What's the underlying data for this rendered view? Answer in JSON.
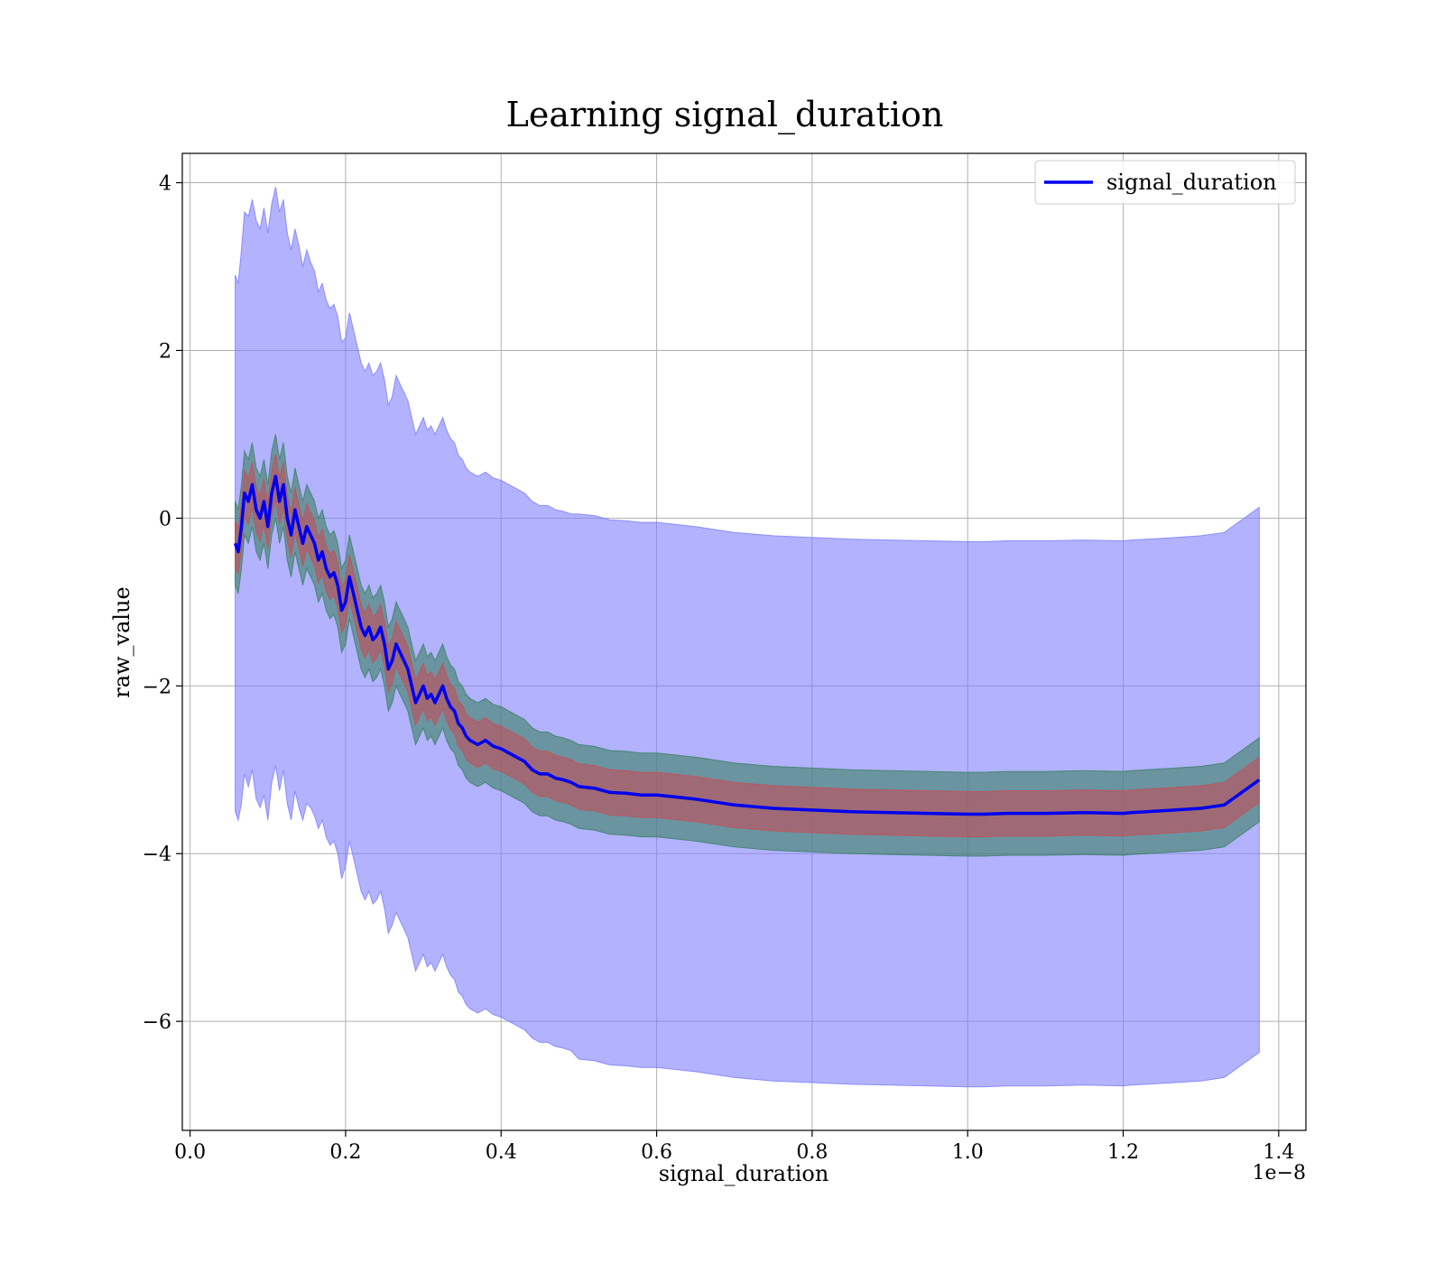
{
  "chart_data": {
    "type": "line",
    "title": "Learning signal_duration",
    "xlabel": "signal_duration",
    "ylabel": "raw_value",
    "x_offset_text": "1e−8",
    "xlim": [
      -0.01,
      1.435
    ],
    "ylim": [
      -7.3,
      4.35
    ],
    "x_scale_multiplier": 1e-08,
    "grid": true,
    "legend_placement": "top-right",
    "x_ticks": [
      0.0,
      0.2,
      0.4,
      0.6,
      0.8,
      1.0,
      1.2,
      1.4
    ],
    "x_tick_labels": [
      "0.0",
      "0.2",
      "0.4",
      "0.6",
      "0.8",
      "1.0",
      "1.2",
      "1.4"
    ],
    "y_ticks": [
      4,
      2,
      0,
      -2,
      -4,
      -6
    ],
    "y_tick_labels": [
      "4",
      "2",
      "0",
      "−2",
      "−4",
      "−6"
    ],
    "series": [
      {
        "name": "signal_duration",
        "color": "#0000ee",
        "x": [
          0.058,
          0.062,
          0.066,
          0.07,
          0.075,
          0.08,
          0.085,
          0.09,
          0.095,
          0.1,
          0.105,
          0.11,
          0.115,
          0.12,
          0.125,
          0.13,
          0.135,
          0.14,
          0.145,
          0.15,
          0.155,
          0.16,
          0.165,
          0.17,
          0.175,
          0.18,
          0.185,
          0.19,
          0.195,
          0.2,
          0.205,
          0.21,
          0.215,
          0.22,
          0.225,
          0.23,
          0.235,
          0.24,
          0.245,
          0.25,
          0.255,
          0.26,
          0.265,
          0.27,
          0.275,
          0.28,
          0.285,
          0.29,
          0.295,
          0.3,
          0.305,
          0.31,
          0.315,
          0.32,
          0.325,
          0.33,
          0.335,
          0.34,
          0.345,
          0.35,
          0.355,
          0.36,
          0.37,
          0.38,
          0.39,
          0.4,
          0.41,
          0.42,
          0.43,
          0.44,
          0.45,
          0.46,
          0.47,
          0.48,
          0.49,
          0.5,
          0.52,
          0.54,
          0.56,
          0.58,
          0.6,
          0.62,
          0.65,
          0.7,
          0.75,
          0.8,
          0.85,
          0.9,
          0.95,
          1.0,
          1.02,
          1.05,
          1.1,
          1.15,
          1.2,
          1.21,
          1.25,
          1.3,
          1.33,
          1.375
        ],
        "y": [
          -0.3,
          -0.4,
          -0.1,
          0.3,
          0.2,
          0.4,
          0.1,
          0.0,
          0.2,
          -0.1,
          0.3,
          0.5,
          0.2,
          0.4,
          0.0,
          -0.2,
          0.1,
          -0.1,
          -0.3,
          -0.1,
          -0.2,
          -0.3,
          -0.5,
          -0.4,
          -0.6,
          -0.7,
          -0.65,
          -0.8,
          -1.1,
          -1.0,
          -0.7,
          -0.9,
          -1.1,
          -1.3,
          -1.4,
          -1.3,
          -1.45,
          -1.4,
          -1.3,
          -1.5,
          -1.8,
          -1.7,
          -1.5,
          -1.6,
          -1.7,
          -1.8,
          -2.0,
          -2.2,
          -2.1,
          -2.0,
          -2.15,
          -2.1,
          -2.2,
          -2.1,
          -2.0,
          -2.15,
          -2.25,
          -2.3,
          -2.45,
          -2.5,
          -2.6,
          -2.65,
          -2.7,
          -2.65,
          -2.72,
          -2.75,
          -2.8,
          -2.85,
          -2.9,
          -3.0,
          -3.05,
          -3.05,
          -3.1,
          -3.12,
          -3.15,
          -3.2,
          -3.22,
          -3.27,
          -3.28,
          -3.3,
          -3.3,
          -3.32,
          -3.35,
          -3.42,
          -3.46,
          -3.48,
          -3.5,
          -3.51,
          -3.52,
          -3.53,
          -3.53,
          -3.52,
          -3.52,
          -3.51,
          -3.52,
          -3.51,
          -3.49,
          -3.46,
          -3.42,
          -3.12
        ],
        "bands": [
          {
            "color": "#7a7aff",
            "opacity": 0.58,
            "half_width": [
              3.2,
              3.2,
              3.3,
              3.35,
              3.4,
              3.4,
              3.45,
              3.45,
              3.5,
              3.5,
              3.45,
              3.45,
              3.45,
              3.4,
              3.4,
              3.4,
              3.35,
              3.35,
              3.3,
              3.3,
              3.25,
              3.25,
              3.2,
              3.2,
              3.2,
              3.2,
              3.2,
              3.2,
              3.2,
              3.15,
              3.15,
              3.15,
              3.15,
              3.15,
              3.15,
              3.15,
              3.15,
              3.15,
              3.15,
              3.15,
              3.15,
              3.15,
              3.2,
              3.2,
              3.2,
              3.2,
              3.2,
              3.2,
              3.2,
              3.2,
              3.2,
              3.2,
              3.2,
              3.2,
              3.2,
              3.2,
              3.2,
              3.2,
              3.2,
              3.2,
              3.2,
              3.2,
              3.2,
              3.2,
              3.2,
              3.2,
              3.2,
              3.2,
              3.2,
              3.2,
              3.2,
              3.2,
              3.2,
              3.2,
              3.2,
              3.25,
              3.25,
              3.25,
              3.25,
              3.25,
              3.25,
              3.25,
              3.25,
              3.25,
              3.25,
              3.25,
              3.25,
              3.25,
              3.25,
              3.25,
              3.25,
              3.25,
              3.25,
              3.25,
              3.25,
              3.25,
              3.25,
              3.25,
              3.25,
              3.25
            ]
          },
          {
            "color": "#3a8060",
            "opacity": 0.6,
            "half_width": [
              0.5,
              0.5,
              0.5,
              0.5,
              0.5,
              0.5,
              0.5,
              0.5,
              0.5,
              0.5,
              0.5,
              0.5,
              0.5,
              0.5,
              0.5,
              0.5,
              0.5,
              0.5,
              0.5,
              0.5,
              0.5,
              0.5,
              0.5,
              0.5,
              0.5,
              0.5,
              0.5,
              0.5,
              0.5,
              0.5,
              0.5,
              0.5,
              0.5,
              0.5,
              0.5,
              0.5,
              0.5,
              0.5,
              0.5,
              0.5,
              0.5,
              0.5,
              0.5,
              0.5,
              0.5,
              0.5,
              0.5,
              0.5,
              0.5,
              0.5,
              0.5,
              0.5,
              0.5,
              0.5,
              0.5,
              0.5,
              0.5,
              0.5,
              0.5,
              0.5,
              0.5,
              0.5,
              0.5,
              0.5,
              0.5,
              0.5,
              0.5,
              0.5,
              0.5,
              0.5,
              0.5,
              0.5,
              0.5,
              0.5,
              0.5,
              0.5,
              0.5,
              0.5,
              0.5,
              0.5,
              0.5,
              0.5,
              0.5,
              0.5,
              0.5,
              0.5,
              0.5,
              0.5,
              0.5,
              0.5,
              0.5,
              0.5,
              0.5,
              0.5,
              0.5,
              0.5,
              0.5,
              0.5,
              0.5,
              0.5
            ]
          },
          {
            "color": "#c0505a",
            "opacity": 0.62,
            "half_width": [
              0.27,
              0.27,
              0.27,
              0.27,
              0.27,
              0.27,
              0.27,
              0.27,
              0.27,
              0.27,
              0.27,
              0.27,
              0.27,
              0.27,
              0.27,
              0.27,
              0.27,
              0.27,
              0.27,
              0.27,
              0.27,
              0.27,
              0.27,
              0.27,
              0.27,
              0.27,
              0.27,
              0.27,
              0.27,
              0.27,
              0.27,
              0.27,
              0.27,
              0.27,
              0.27,
              0.27,
              0.27,
              0.27,
              0.27,
              0.27,
              0.27,
              0.27,
              0.27,
              0.27,
              0.27,
              0.27,
              0.27,
              0.27,
              0.27,
              0.27,
              0.27,
              0.27,
              0.27,
              0.27,
              0.27,
              0.27,
              0.27,
              0.27,
              0.27,
              0.27,
              0.27,
              0.27,
              0.27,
              0.27,
              0.27,
              0.27,
              0.27,
              0.27,
              0.27,
              0.27,
              0.27,
              0.27,
              0.27,
              0.27,
              0.27,
              0.27,
              0.27,
              0.27,
              0.27,
              0.27,
              0.27,
              0.27,
              0.27,
              0.27,
              0.27,
              0.27,
              0.27,
              0.27,
              0.27,
              0.27,
              0.27,
              0.27,
              0.27,
              0.27,
              0.27,
              0.27,
              0.27,
              0.27,
              0.27,
              0.27
            ]
          }
        ]
      }
    ]
  }
}
